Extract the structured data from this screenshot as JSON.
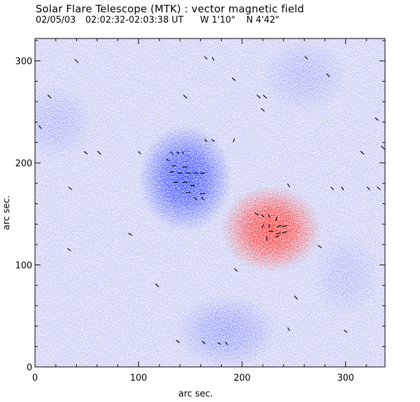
{
  "chart_data": {
    "type": "heatmap",
    "title": "Solar Flare Telescope (MTK) : vector magnetic field",
    "date": "02/05/03",
    "time_range": "02:02:32-02:03:38 UT",
    "longitude": "W 1'10\"",
    "latitude": "N 4'42\"",
    "xlabel": "arc sec.",
    "ylabel": "arc sec.",
    "xlim": [
      0,
      338
    ],
    "ylim": [
      0,
      322
    ],
    "xticks": [
      0,
      100,
      200,
      300
    ],
    "yticks": [
      0,
      100,
      200,
      300
    ],
    "polarity_colors": {
      "negative": "#2a3dff",
      "positive": "#ff2a2a",
      "background": "#c9cdf3"
    },
    "regions": [
      {
        "polarity": "negative",
        "center": [
          145,
          185
        ],
        "radius": [
          28,
          32
        ],
        "strength": 1.0
      },
      {
        "polarity": "positive",
        "center": [
          228,
          135
        ],
        "radius": [
          30,
          26
        ],
        "strength": 1.0
      },
      {
        "polarity": "negative",
        "center": [
          185,
          35
        ],
        "radius": [
          30,
          22
        ],
        "strength": 0.35
      },
      {
        "polarity": "negative",
        "center": [
          20,
          240
        ],
        "radius": [
          22,
          22
        ],
        "strength": 0.2
      },
      {
        "polarity": "negative",
        "center": [
          260,
          285
        ],
        "radius": [
          25,
          22
        ],
        "strength": 0.2
      },
      {
        "polarity": "negative",
        "center": [
          300,
          90
        ],
        "radius": [
          20,
          25
        ],
        "strength": 0.15
      }
    ],
    "vectors": [
      [
        40,
        300,
        -0.6,
        0.6
      ],
      [
        14,
        265,
        -0.6,
        0.6
      ],
      [
        5,
        235,
        -0.5,
        0.6
      ],
      [
        145,
        265,
        -0.6,
        0.6
      ],
      [
        165,
        303,
        -0.5,
        0.5
      ],
      [
        172,
        302,
        -0.3,
        0.6
      ],
      [
        192,
        282,
        -0.6,
        0.5
      ],
      [
        216,
        265,
        -0.6,
        0.6
      ],
      [
        222,
        265,
        -0.6,
        0.6
      ],
      [
        220,
        252,
        -0.6,
        0.5
      ],
      [
        165,
        222,
        -0.4,
        0.5
      ],
      [
        172,
        222,
        -0.5,
        0.4
      ],
      [
        192,
        222,
        0.3,
        0.6
      ],
      [
        49,
        210,
        -0.6,
        0.5
      ],
      [
        62,
        210,
        -0.6,
        0.6
      ],
      [
        101,
        210,
        -0.5,
        0.5
      ],
      [
        132,
        210,
        -0.4,
        0.5
      ],
      [
        138,
        210,
        -0.4,
        0.4
      ],
      [
        143,
        210,
        -0.3,
        0.4
      ],
      [
        128,
        203,
        -0.4,
        0.4
      ],
      [
        134,
        197,
        0.8,
        0.1
      ],
      [
        145,
        196,
        0.9,
        0.0
      ],
      [
        132,
        191,
        0.7,
        0.1
      ],
      [
        140,
        190,
        0.9,
        0.0
      ],
      [
        148,
        190,
        0.9,
        0.0
      ],
      [
        155,
        190,
        0.9,
        0.0
      ],
      [
        162,
        190,
        0.9,
        0.0
      ],
      [
        136,
        181,
        0.8,
        0.1
      ],
      [
        145,
        181,
        0.9,
        0.0
      ],
      [
        152,
        178,
        0.9,
        0.0
      ],
      [
        148,
        171,
        0.8,
        0.0
      ],
      [
        162,
        170,
        0.9,
        0.1
      ],
      [
        155,
        165,
        -0.5,
        0.5
      ],
      [
        162,
        165,
        -0.4,
        0.5
      ],
      [
        34,
        175,
        -0.6,
        0.5
      ],
      [
        92,
        130,
        -0.7,
        0.4
      ],
      [
        33,
        115,
        -0.6,
        0.5
      ],
      [
        214,
        150,
        -0.6,
        0.5
      ],
      [
        220,
        148,
        -0.5,
        0.4
      ],
      [
        226,
        148,
        -0.1,
        0.6
      ],
      [
        233,
        145,
        0.2,
        0.7
      ],
      [
        220,
        138,
        0.4,
        0.6
      ],
      [
        226,
        138,
        0.1,
        0.7
      ],
      [
        236,
        138,
        0.8,
        0.3
      ],
      [
        241,
        138,
        0.9,
        0.2
      ],
      [
        228,
        133,
        0.8,
        0.1
      ],
      [
        235,
        131,
        0.9,
        0.1
      ],
      [
        241,
        132,
        0.9,
        0.2
      ],
      [
        224,
        126,
        -0.1,
        0.8
      ],
      [
        234,
        128,
        0.7,
        0.2
      ],
      [
        245,
        178,
        -0.4,
        0.6
      ],
      [
        275,
        118,
        -0.7,
        0.4
      ],
      [
        287,
        175,
        -0.5,
        0.5
      ],
      [
        297,
        175,
        -0.4,
        0.6
      ],
      [
        322,
        175,
        -0.5,
        0.5
      ],
      [
        332,
        175,
        -0.6,
        0.5
      ],
      [
        336,
        215,
        -0.6,
        0.6
      ],
      [
        316,
        210,
        -0.6,
        0.6
      ],
      [
        330,
        243,
        -0.6,
        0.5
      ],
      [
        283,
        286,
        -0.6,
        0.6
      ],
      [
        194,
        95,
        -0.6,
        0.5
      ],
      [
        118,
        80,
        -0.6,
        0.6
      ],
      [
        252,
        68,
        -0.6,
        0.6
      ],
      [
        245,
        37,
        -0.4,
        0.6
      ],
      [
        300,
        35,
        -0.6,
        0.5
      ],
      [
        138,
        25,
        -0.6,
        0.5
      ],
      [
        163,
        24,
        -0.6,
        0.5
      ],
      [
        178,
        23,
        -0.5,
        0.4
      ],
      [
        185,
        23,
        -0.4,
        0.5
      ],
      [
        262,
        303,
        -0.6,
        0.5
      ]
    ]
  }
}
